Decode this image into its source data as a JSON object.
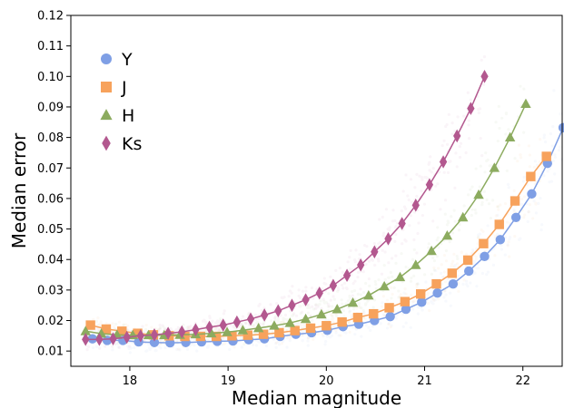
{
  "chart_data": {
    "type": "scatter",
    "title": "",
    "xlabel": "Median magnitude",
    "ylabel": "Median error",
    "xlim": [
      17.4,
      22.4
    ],
    "ylim": [
      0.005,
      0.12
    ],
    "xticks": [
      18,
      19,
      20,
      21,
      22
    ],
    "yticks": [
      0.01,
      0.02,
      0.03,
      0.04,
      0.05,
      0.06,
      0.07,
      0.08,
      0.09,
      0.1,
      0.11,
      0.12
    ],
    "ytick_labels": [
      "0.01",
      "0.02",
      "0.03",
      "0.04",
      "0.05",
      "0.06",
      "0.07",
      "0.08",
      "0.09",
      "0.10",
      "0.11",
      "0.12"
    ],
    "grid": false,
    "legend": "top-left",
    "series": [
      {
        "name": "Y",
        "marker": "circle",
        "color": "#7f9fe5",
        "points": [
          [
            17.62,
            0.014
          ],
          [
            17.77,
            0.0135
          ],
          [
            17.93,
            0.0135
          ],
          [
            18.09,
            0.013
          ],
          [
            18.25,
            0.0128
          ],
          [
            18.41,
            0.0127
          ],
          [
            18.57,
            0.0128
          ],
          [
            18.73,
            0.013
          ],
          [
            18.89,
            0.0132
          ],
          [
            19.05,
            0.0133
          ],
          [
            19.21,
            0.0137
          ],
          [
            19.37,
            0.014
          ],
          [
            19.53,
            0.0148
          ],
          [
            19.69,
            0.0155
          ],
          [
            19.85,
            0.016
          ],
          [
            20.01,
            0.0168
          ],
          [
            20.17,
            0.018
          ],
          [
            20.33,
            0.0188
          ],
          [
            20.49,
            0.02
          ],
          [
            20.65,
            0.0213
          ],
          [
            20.81,
            0.0237
          ],
          [
            20.97,
            0.026
          ],
          [
            21.13,
            0.029
          ],
          [
            21.29,
            0.032
          ],
          [
            21.45,
            0.0362
          ],
          [
            21.61,
            0.041
          ],
          [
            21.77,
            0.0465
          ],
          [
            21.93,
            0.0538
          ],
          [
            22.09,
            0.0615
          ],
          [
            22.25,
            0.0715
          ],
          [
            22.41,
            0.0832
          ]
        ]
      },
      {
        "name": "J",
        "marker": "square",
        "color": "#f7a25c",
        "points": [
          [
            17.6,
            0.0185
          ],
          [
            17.76,
            0.0172
          ],
          [
            17.92,
            0.0165
          ],
          [
            18.08,
            0.0158
          ],
          [
            18.24,
            0.0153
          ],
          [
            18.4,
            0.015
          ],
          [
            18.56,
            0.0148
          ],
          [
            18.72,
            0.0148
          ],
          [
            18.88,
            0.0148
          ],
          [
            19.04,
            0.015
          ],
          [
            19.2,
            0.0152
          ],
          [
            19.36,
            0.0155
          ],
          [
            19.52,
            0.016
          ],
          [
            19.68,
            0.0167
          ],
          [
            19.84,
            0.0175
          ],
          [
            20.0,
            0.0183
          ],
          [
            20.16,
            0.0195
          ],
          [
            20.32,
            0.021
          ],
          [
            20.48,
            0.0222
          ],
          [
            20.64,
            0.0242
          ],
          [
            20.8,
            0.0262
          ],
          [
            20.96,
            0.0287
          ],
          [
            21.12,
            0.032
          ],
          [
            21.28,
            0.0355
          ],
          [
            21.44,
            0.0398
          ],
          [
            21.6,
            0.0452
          ],
          [
            21.76,
            0.0515
          ],
          [
            21.92,
            0.0592
          ],
          [
            22.08,
            0.0672
          ],
          [
            22.24,
            0.0738
          ]
        ]
      },
      {
        "name": "H",
        "marker": "triangle",
        "color": "#8cab5f",
        "points": [
          [
            17.55,
            0.0165
          ],
          [
            17.71,
            0.0157
          ],
          [
            17.87,
            0.0153
          ],
          [
            18.03,
            0.0152
          ],
          [
            18.19,
            0.0152
          ],
          [
            18.35,
            0.0152
          ],
          [
            18.51,
            0.0153
          ],
          [
            18.67,
            0.0155
          ],
          [
            18.83,
            0.0158
          ],
          [
            18.99,
            0.0162
          ],
          [
            19.15,
            0.0168
          ],
          [
            19.31,
            0.0175
          ],
          [
            19.47,
            0.0183
          ],
          [
            19.63,
            0.0192
          ],
          [
            19.79,
            0.0205
          ],
          [
            19.95,
            0.022
          ],
          [
            20.11,
            0.0237
          ],
          [
            20.27,
            0.0258
          ],
          [
            20.43,
            0.0282
          ],
          [
            20.59,
            0.0312
          ],
          [
            20.75,
            0.0342
          ],
          [
            20.91,
            0.0382
          ],
          [
            21.07,
            0.0428
          ],
          [
            21.23,
            0.0478
          ],
          [
            21.39,
            0.0538
          ],
          [
            21.55,
            0.0612
          ],
          [
            21.71,
            0.07
          ],
          [
            21.87,
            0.08
          ],
          [
            22.03,
            0.091
          ]
        ]
      },
      {
        "name": "Ks",
        "marker": "diamond",
        "color": "#b3588f",
        "points": [
          [
            17.55,
            0.0138
          ],
          [
            17.69,
            0.0138
          ],
          [
            17.83,
            0.014
          ],
          [
            17.97,
            0.0145
          ],
          [
            18.11,
            0.015
          ],
          [
            18.25,
            0.0153
          ],
          [
            18.39,
            0.0158
          ],
          [
            18.53,
            0.0163
          ],
          [
            18.67,
            0.017
          ],
          [
            18.81,
            0.0178
          ],
          [
            18.95,
            0.0185
          ],
          [
            19.09,
            0.0195
          ],
          [
            19.23,
            0.0205
          ],
          [
            19.37,
            0.0218
          ],
          [
            19.51,
            0.0232
          ],
          [
            19.65,
            0.025
          ],
          [
            19.79,
            0.0268
          ],
          [
            19.93,
            0.029
          ],
          [
            20.07,
            0.0315
          ],
          [
            20.21,
            0.0348
          ],
          [
            20.35,
            0.0382
          ],
          [
            20.49,
            0.0425
          ],
          [
            20.63,
            0.0468
          ],
          [
            20.77,
            0.0518
          ],
          [
            20.91,
            0.0578
          ],
          [
            21.05,
            0.0645
          ],
          [
            21.19,
            0.072
          ],
          [
            21.33,
            0.0805
          ],
          [
            21.47,
            0.0895
          ],
          [
            21.61,
            0.1
          ]
        ]
      }
    ]
  }
}
